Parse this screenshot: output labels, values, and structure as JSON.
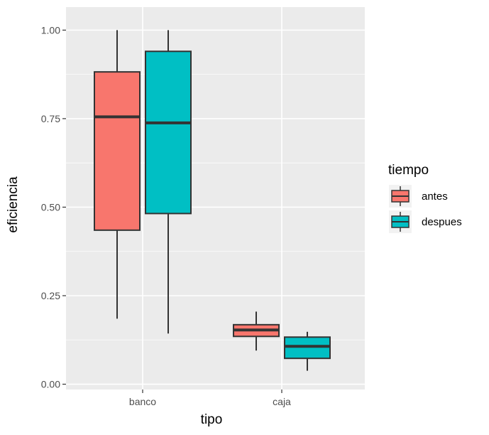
{
  "chart_data": {
    "type": "boxplot",
    "xlabel": "tipo",
    "ylabel": "eficiencia",
    "ylim": [
      -0.015,
      1.065
    ],
    "yticks": [
      0.0,
      0.25,
      0.5,
      0.75,
      1.0
    ],
    "ytick_labels": [
      "0.00",
      "0.25",
      "0.50",
      "0.75",
      "1.00"
    ],
    "categories": [
      "banco",
      "caja"
    ],
    "grid": true,
    "legend": {
      "title": "tiempo",
      "placement": "right",
      "entries": [
        "antes",
        "despues"
      ]
    },
    "series": [
      {
        "name": "antes",
        "color": "#F8766D",
        "boxes": [
          {
            "category": "banco",
            "min": 0.185,
            "q1": 0.435,
            "median": 0.755,
            "q3": 0.882,
            "max": 1.0
          },
          {
            "category": "caja",
            "min": 0.095,
            "q1": 0.135,
            "median": 0.153,
            "q3": 0.168,
            "max": 0.205
          }
        ]
      },
      {
        "name": "despues",
        "color": "#00BFC4",
        "boxes": [
          {
            "category": "banco",
            "min": 0.143,
            "q1": 0.482,
            "median": 0.738,
            "q3": 0.94,
            "max": 1.0
          },
          {
            "category": "caja",
            "min": 0.038,
            "q1": 0.073,
            "median": 0.107,
            "q3": 0.133,
            "max": 0.148
          }
        ]
      }
    ],
    "colors": {
      "panel_background": "#EBEBEB",
      "grid_major": "#FFFFFF",
      "box_outline": "#333333"
    }
  }
}
